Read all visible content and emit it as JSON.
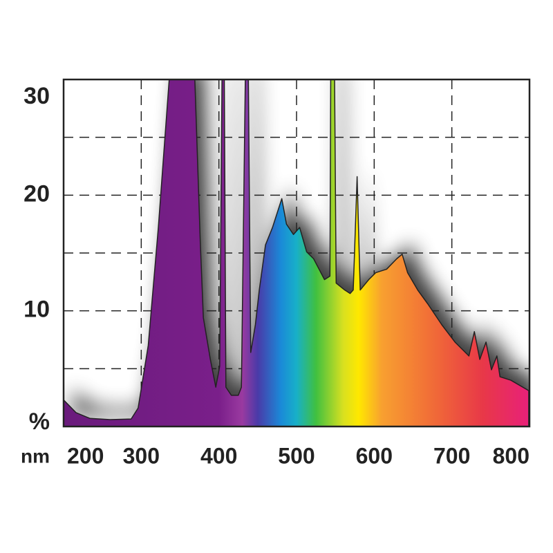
{
  "chart_data": {
    "type": "area",
    "x_unit_label": "nm",
    "y_unit_label": "%",
    "x": [
      200,
      216,
      234,
      260,
      287,
      296,
      309,
      322,
      336,
      369,
      376,
      380,
      389,
      396,
      401,
      404,
      407,
      409,
      416,
      425,
      429,
      434,
      438,
      441,
      447,
      452,
      460,
      469,
      481,
      487,
      496,
      504,
      513,
      522,
      536,
      543,
      544,
      549,
      551,
      562,
      569,
      573,
      578,
      582,
      593,
      602,
      616,
      629,
      636,
      643,
      656,
      669,
      687,
      704,
      722,
      729,
      736,
      744,
      751,
      758,
      762,
      776,
      799
    ],
    "values": [
      2.3,
      1.2,
      0.7,
      0.6,
      0.65,
      1.6,
      7,
      17.2,
      30,
      30,
      16,
      9.4,
      5.8,
      3.4,
      5.2,
      30,
      30,
      3.4,
      2.7,
      2.7,
      3.4,
      30,
      30,
      6.4,
      8.8,
      11.8,
      15.7,
      17.2,
      19.7,
      17.5,
      16.6,
      17.2,
      15.1,
      14.5,
      12.7,
      13,
      30,
      30,
      12.4,
      11.8,
      11.5,
      11.8,
      21.6,
      11.8,
      12.7,
      13.3,
      13.6,
      14.5,
      14.9,
      13.3,
      11.8,
      10.6,
      8.8,
      7.3,
      6.1,
      8.2,
      5.8,
      7.3,
      4.9,
      6.1,
      4.3,
      4,
      3.1
    ],
    "xlim": [
      200,
      800
    ],
    "xticks": [
      200,
      300,
      400,
      500,
      600,
      700,
      800
    ],
    "ylim": [
      0,
      30
    ],
    "yticks": [
      10,
      20,
      30
    ],
    "y_minor_ticks": [
      5,
      15,
      25
    ],
    "grid": true,
    "line_color": "#222222",
    "shadow_color": "#000000",
    "gradient": [
      {
        "offset": 200,
        "color": "#6a1b7c"
      },
      {
        "offset": 400,
        "color": "#7a1f8a"
      },
      {
        "offset": 430,
        "color": "#9a3aa0"
      },
      {
        "offset": 450,
        "color": "#4a3aa8"
      },
      {
        "offset": 480,
        "color": "#1a8ad8"
      },
      {
        "offset": 500,
        "color": "#18b0c8"
      },
      {
        "offset": 525,
        "color": "#40c040"
      },
      {
        "offset": 560,
        "color": "#d8e020"
      },
      {
        "offset": 580,
        "color": "#ffe800"
      },
      {
        "offset": 610,
        "color": "#f8a030"
      },
      {
        "offset": 680,
        "color": "#f06838"
      },
      {
        "offset": 740,
        "color": "#e83848"
      },
      {
        "offset": 800,
        "color": "#e8207a"
      }
    ]
  }
}
